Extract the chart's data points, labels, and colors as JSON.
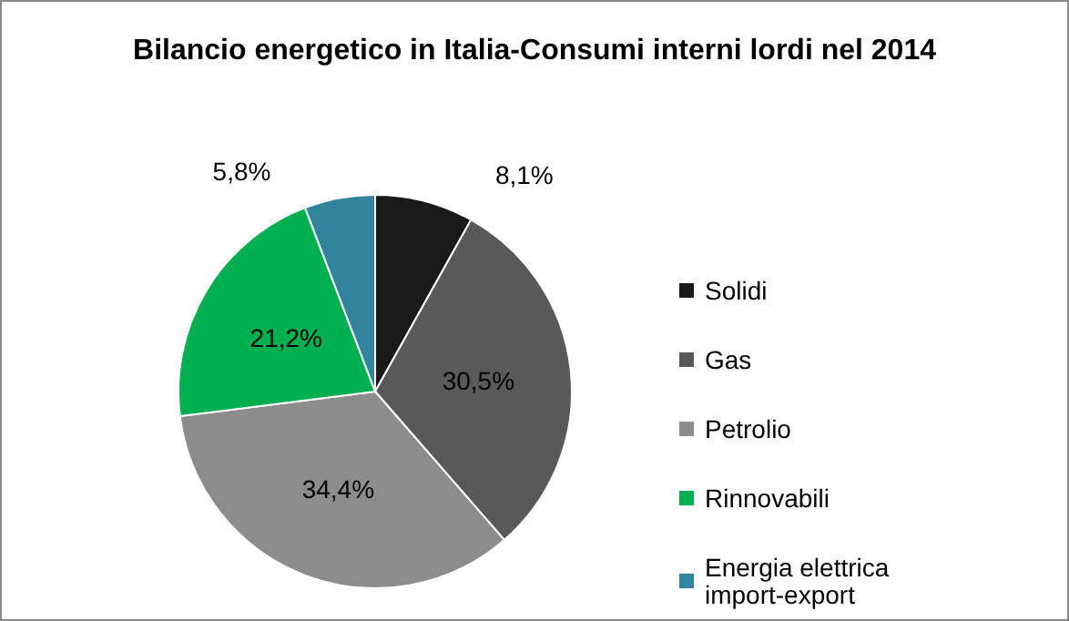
{
  "chart_data": {
    "type": "pie",
    "title": "Bilancio energetico in Italia-Consumi interni lordi nel 2014",
    "categories": [
      "Solidi",
      "Gas",
      "Petrolio",
      "Rinnovabili",
      "Energia elettrica import-export"
    ],
    "values": [
      8.1,
      30.5,
      34.4,
      21.2,
      5.8
    ],
    "value_labels": [
      "8,1%",
      "30,5%",
      "34,4%",
      "21,2%",
      "5,8%"
    ],
    "colors": [
      "#1a1a1a",
      "#595959",
      "#8c8c8c",
      "#00b050",
      "#31849b"
    ],
    "legend": "right"
  }
}
